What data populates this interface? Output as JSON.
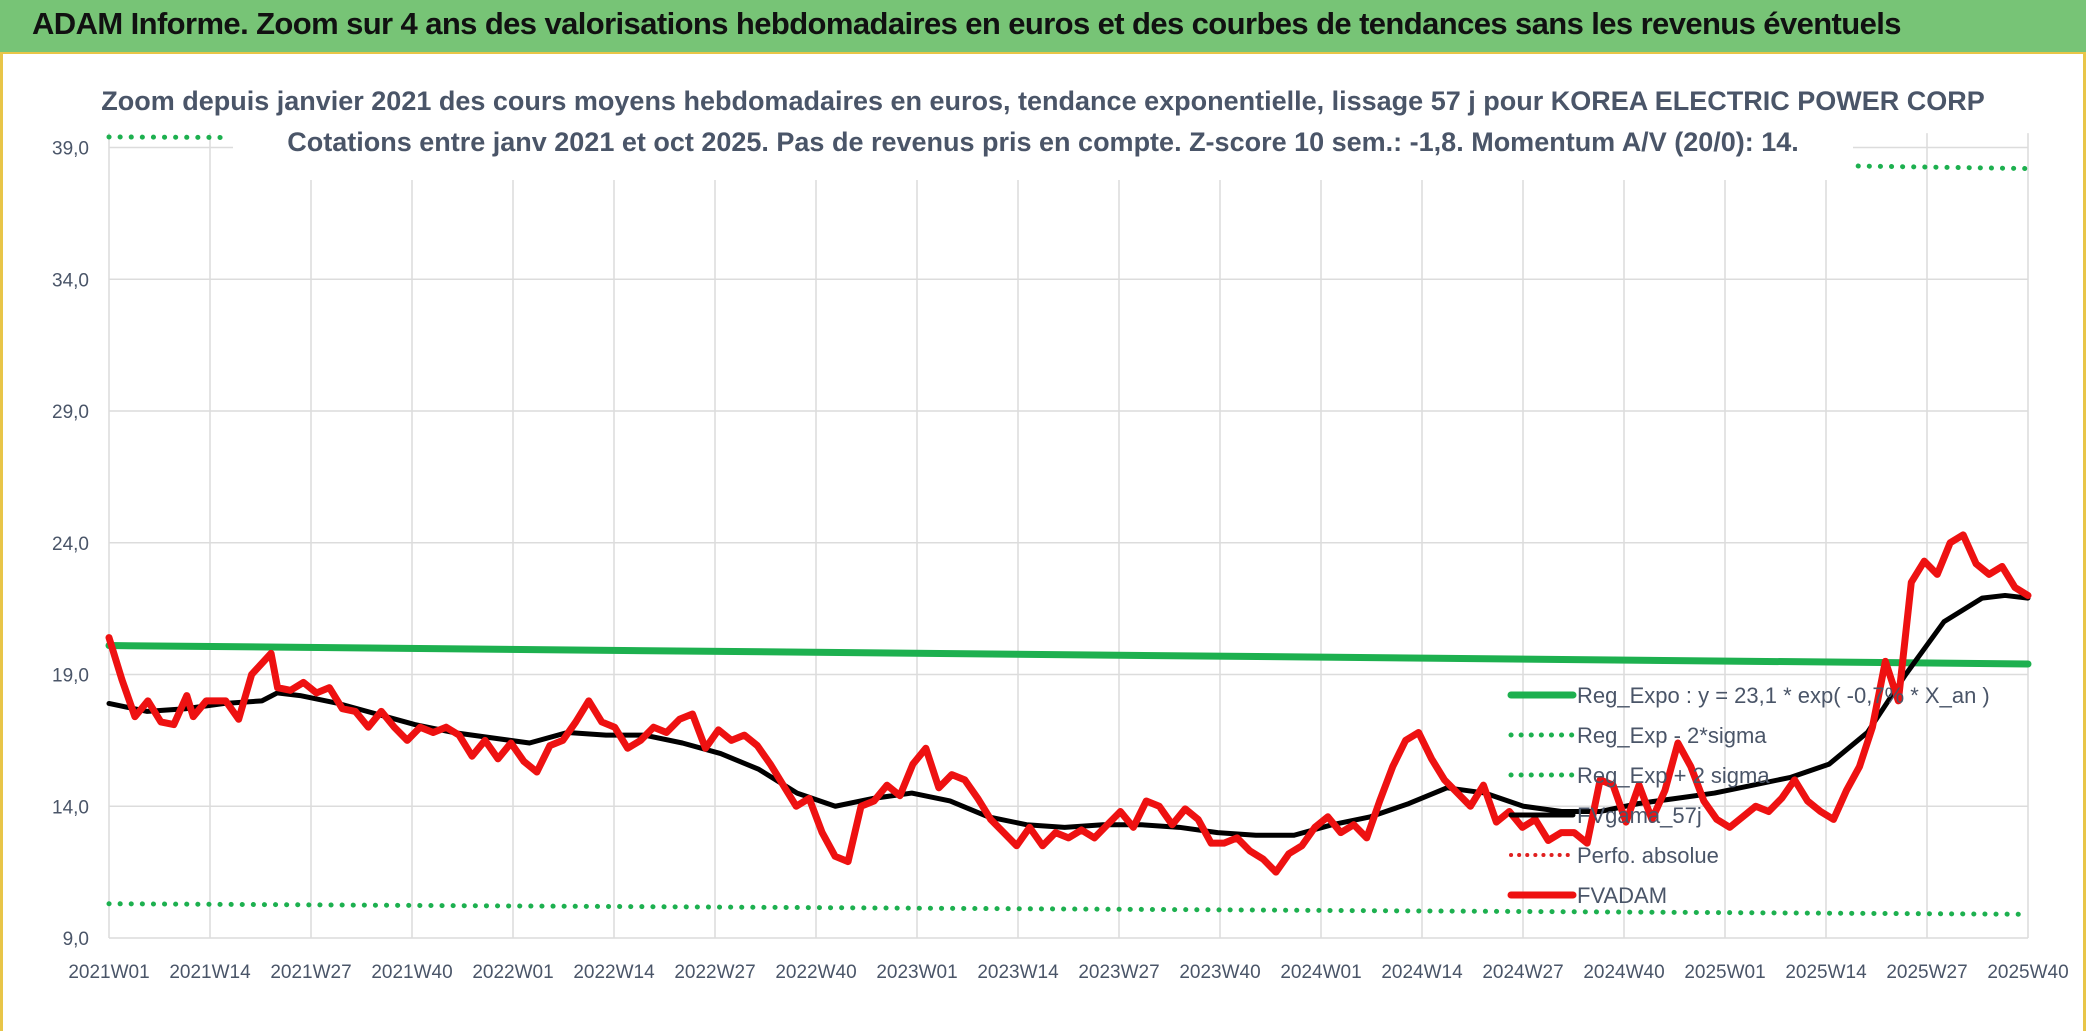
{
  "banner": {
    "title": "ADAM Informe. Zoom sur 4 ans des valorisations hebdomadaires en euros et des courbes de tendances sans les revenus éventuels"
  },
  "colors": {
    "banner_bg": "#77c476",
    "reg_expo": "#1db04f",
    "sigma": "#1db04f",
    "mm": "#000000",
    "perfo": "#e02020",
    "fvadam": "#ee1111"
  },
  "chart_data": {
    "type": "line",
    "title_line1": "Zoom depuis janvier 2021 des cours moyens hebdomadaires en euros, tendance exponentielle, lissage 57 j pour KOREA ELECTRIC POWER CORP",
    "title_line2": "Cotations entre janv 2021 et oct 2025. Pas de revenus pris en compte. Z-score 10 sem.: -1,8. Momentum A/V (20/0): 14.",
    "ylim": [
      9,
      40
    ],
    "yticks": [
      "9,0",
      "14,0",
      "19,0",
      "24,0",
      "29,0",
      "34,0",
      "39,0"
    ],
    "ytick_values": [
      9,
      14,
      19,
      24,
      29,
      34,
      39
    ],
    "xticks": [
      "2021W01",
      "2021W14",
      "2021W27",
      "2021W40",
      "2022W01",
      "2022W14",
      "2022W27",
      "2022W40",
      "2023W01",
      "2023W14",
      "2023W27",
      "2023W40",
      "2024W01",
      "2024W14",
      "2024W27",
      "2024W40",
      "2025W01",
      "2025W14",
      "2025W27",
      "2025W40"
    ],
    "grid": true,
    "legend_position": "bottom-right",
    "legend": [
      {
        "label": "Reg_Expo : y = 23,1 * exp( -0,7% * X_an )",
        "style": "solid-green"
      },
      {
        "label": "Reg_Exp - 2*sigma",
        "style": "dotted-green"
      },
      {
        "label": "Reg_Exp + 2 sigma",
        "style": "dotted-green"
      },
      {
        "label": "FVgama_57j",
        "style": "solid-black"
      },
      {
        "label": "Perfo. absolue",
        "style": "dotted-red"
      },
      {
        "label": "FVADAM",
        "style": "solid-red"
      }
    ],
    "series": [
      {
        "name": "Reg_Expo : y = 23,1 * exp( -0,7% * X_an )",
        "x_range": [
          0,
          247
        ],
        "values_at_ends": [
          20.1,
          19.4
        ]
      },
      {
        "name": "Reg_Exp - 2*sigma",
        "x_range": [
          0,
          247
        ],
        "values_at_ends": [
          10.3,
          9.9
        ]
      },
      {
        "name": "Reg_Exp + 2 sigma",
        "x_range": [
          0,
          247
        ],
        "values_at_ends": [
          39.4,
          38.2
        ]
      },
      {
        "name": "FVgama_57j",
        "points": [
          [
            0,
            17.9
          ],
          [
            5,
            17.6
          ],
          [
            10,
            17.7
          ],
          [
            15,
            17.9
          ],
          [
            20,
            18.0
          ],
          [
            22,
            18.3
          ],
          [
            25,
            18.2
          ],
          [
            30,
            17.9
          ],
          [
            35,
            17.5
          ],
          [
            40,
            17.1
          ],
          [
            45,
            16.8
          ],
          [
            50,
            16.6
          ],
          [
            55,
            16.4
          ],
          [
            60,
            16.8
          ],
          [
            65,
            16.7
          ],
          [
            70,
            16.7
          ],
          [
            75,
            16.4
          ],
          [
            80,
            16.0
          ],
          [
            85,
            15.4
          ],
          [
            90,
            14.5
          ],
          [
            95,
            14.0
          ],
          [
            100,
            14.3
          ],
          [
            105,
            14.5
          ],
          [
            110,
            14.2
          ],
          [
            115,
            13.6
          ],
          [
            120,
            13.3
          ],
          [
            125,
            13.2
          ],
          [
            130,
            13.3
          ],
          [
            135,
            13.3
          ],
          [
            140,
            13.2
          ],
          [
            145,
            13.0
          ],
          [
            150,
            12.9
          ],
          [
            155,
            12.9
          ],
          [
            160,
            13.3
          ],
          [
            165,
            13.6
          ],
          [
            170,
            14.1
          ],
          [
            175,
            14.7
          ],
          [
            180,
            14.5
          ],
          [
            185,
            14.0
          ],
          [
            190,
            13.8
          ],
          [
            195,
            13.8
          ],
          [
            200,
            14.1
          ],
          [
            205,
            14.3
          ],
          [
            210,
            14.5
          ],
          [
            215,
            14.8
          ],
          [
            220,
            15.1
          ],
          [
            225,
            15.6
          ],
          [
            230,
            16.8
          ],
          [
            235,
            19.0
          ],
          [
            240,
            21.0
          ],
          [
            245,
            21.9
          ],
          [
            248,
            22.0
          ],
          [
            251,
            21.9
          ]
        ]
      },
      {
        "name": "FVADAM",
        "points": [
          [
            0,
            20.4
          ],
          [
            2,
            18.8
          ],
          [
            4,
            17.4
          ],
          [
            6,
            18.0
          ],
          [
            8,
            17.2
          ],
          [
            10,
            17.1
          ],
          [
            12,
            18.2
          ],
          [
            13,
            17.4
          ],
          [
            15,
            18.0
          ],
          [
            18,
            18.0
          ],
          [
            20,
            17.3
          ],
          [
            22,
            19.0
          ],
          [
            25,
            19.8
          ],
          [
            26,
            18.5
          ],
          [
            28,
            18.4
          ],
          [
            30,
            18.7
          ],
          [
            32,
            18.3
          ],
          [
            34,
            18.5
          ],
          [
            36,
            17.7
          ],
          [
            38,
            17.6
          ],
          [
            40,
            17.0
          ],
          [
            42,
            17.6
          ],
          [
            44,
            17.0
          ],
          [
            46,
            16.5
          ],
          [
            48,
            17.0
          ],
          [
            50,
            16.8
          ],
          [
            52,
            17.0
          ],
          [
            54,
            16.7
          ],
          [
            56,
            15.9
          ],
          [
            58,
            16.5
          ],
          [
            60,
            15.8
          ],
          [
            62,
            16.4
          ],
          [
            64,
            15.7
          ],
          [
            66,
            15.3
          ],
          [
            68,
            16.3
          ],
          [
            70,
            16.5
          ],
          [
            72,
            17.2
          ],
          [
            74,
            18.0
          ],
          [
            76,
            17.2
          ],
          [
            78,
            17.0
          ],
          [
            80,
            16.2
          ],
          [
            82,
            16.5
          ],
          [
            84,
            17.0
          ],
          [
            86,
            16.8
          ],
          [
            88,
            17.3
          ],
          [
            90,
            17.5
          ],
          [
            92,
            16.2
          ],
          [
            94,
            16.9
          ],
          [
            96,
            16.5
          ],
          [
            98,
            16.7
          ],
          [
            100,
            16.3
          ],
          [
            102,
            15.6
          ],
          [
            104,
            14.8
          ],
          [
            106,
            14.0
          ],
          [
            108,
            14.3
          ],
          [
            110,
            13.0
          ],
          [
            112,
            12.1
          ],
          [
            114,
            11.9
          ],
          [
            116,
            14.0
          ],
          [
            118,
            14.2
          ],
          [
            120,
            14.8
          ],
          [
            122,
            14.4
          ],
          [
            124,
            15.6
          ],
          [
            126,
            16.2
          ],
          [
            128,
            14.7
          ],
          [
            130,
            15.2
          ],
          [
            132,
            15.0
          ],
          [
            134,
            14.3
          ],
          [
            136,
            13.5
          ],
          [
            138,
            13.0
          ],
          [
            140,
            12.5
          ],
          [
            142,
            13.2
          ],
          [
            144,
            12.5
          ],
          [
            146,
            13.0
          ],
          [
            148,
            12.8
          ],
          [
            150,
            13.1
          ],
          [
            152,
            12.8
          ],
          [
            154,
            13.3
          ],
          [
            156,
            13.8
          ],
          [
            158,
            13.2
          ],
          [
            160,
            14.2
          ],
          [
            162,
            14.0
          ],
          [
            164,
            13.3
          ],
          [
            166,
            13.9
          ],
          [
            168,
            13.5
          ],
          [
            170,
            12.6
          ],
          [
            172,
            12.6
          ],
          [
            174,
            12.8
          ],
          [
            176,
            12.3
          ],
          [
            178,
            12.0
          ],
          [
            180,
            11.5
          ],
          [
            182,
            12.2
          ],
          [
            184,
            12.5
          ],
          [
            186,
            13.2
          ],
          [
            188,
            13.6
          ],
          [
            190,
            13.0
          ],
          [
            192,
            13.3
          ],
          [
            194,
            12.8
          ],
          [
            196,
            14.2
          ],
          [
            198,
            15.5
          ],
          [
            200,
            16.5
          ],
          [
            202,
            16.8
          ],
          [
            204,
            15.8
          ],
          [
            206,
            15.0
          ],
          [
            208,
            14.5
          ],
          [
            210,
            14.0
          ],
          [
            212,
            14.8
          ],
          [
            214,
            13.4
          ],
          [
            216,
            13.8
          ],
          [
            218,
            13.2
          ],
          [
            220,
            13.5
          ],
          [
            222,
            12.7
          ],
          [
            224,
            13.0
          ],
          [
            226,
            13.0
          ],
          [
            228,
            12.6
          ],
          [
            230,
            15.0
          ],
          [
            232,
            14.8
          ],
          [
            234,
            13.4
          ],
          [
            236,
            14.8
          ],
          [
            238,
            13.5
          ],
          [
            240,
            14.6
          ],
          [
            242,
            16.4
          ],
          [
            244,
            15.5
          ],
          [
            246,
            14.2
          ],
          [
            248,
            13.5
          ],
          [
            250,
            13.2
          ],
          [
            252,
            13.6
          ],
          [
            254,
            14.0
          ],
          [
            256,
            13.8
          ],
          [
            258,
            14.3
          ],
          [
            260,
            15.0
          ],
          [
            262,
            14.2
          ],
          [
            264,
            13.8
          ],
          [
            266,
            13.5
          ],
          [
            268,
            14.6
          ],
          [
            270,
            15.5
          ],
          [
            272,
            17.0
          ],
          [
            274,
            19.5
          ],
          [
            276,
            18.0
          ],
          [
            278,
            22.5
          ],
          [
            280,
            23.3
          ],
          [
            282,
            22.8
          ],
          [
            284,
            24.0
          ],
          [
            286,
            24.3
          ],
          [
            288,
            23.2
          ],
          [
            290,
            22.8
          ],
          [
            292,
            23.1
          ],
          [
            294,
            22.3
          ],
          [
            296,
            22.0
          ]
        ]
      },
      {
        "name": "Perfo. absolue",
        "points": []
      }
    ]
  }
}
